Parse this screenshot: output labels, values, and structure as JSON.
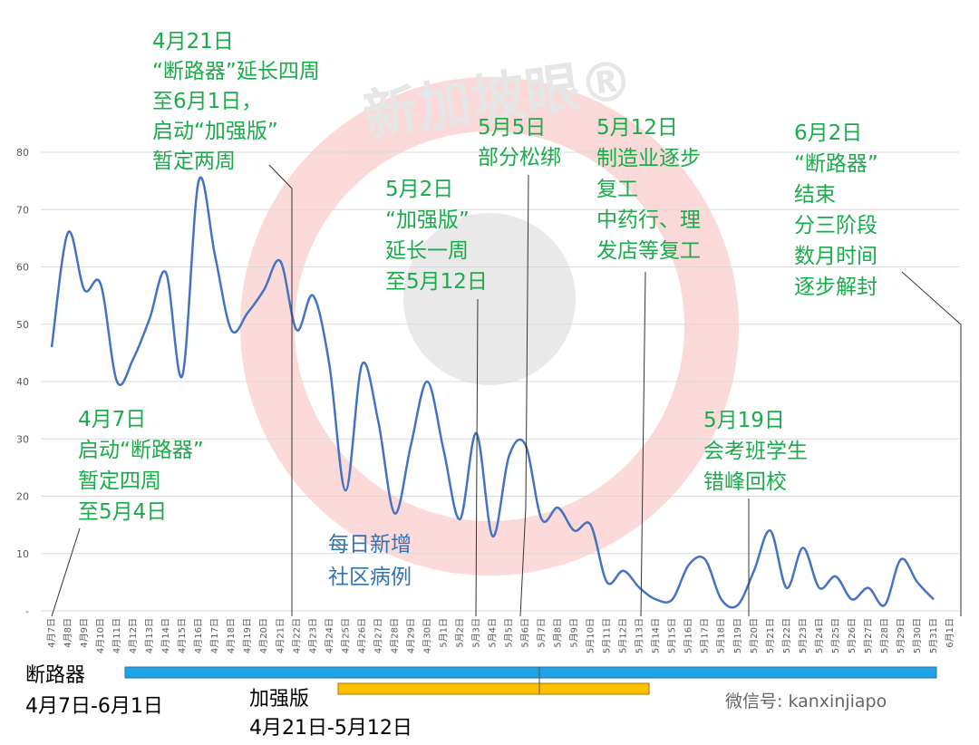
{
  "chart_data": {
    "type": "line",
    "categories": [
      "4月7日",
      "4月8日",
      "4月9日",
      "4月10日",
      "4月11日",
      "4月12日",
      "4月13日",
      "4月14日",
      "4月15日",
      "4月16日",
      "4月17日",
      "4月18日",
      "4月19日",
      "4月20日",
      "4月21日",
      "4月22日",
      "4月23日",
      "4月24日",
      "4月25日",
      "4月26日",
      "4月27日",
      "4月28日",
      "4月29日",
      "4月30日",
      "5月1日",
      "5月2日",
      "5月3日",
      "5月4日",
      "5月5日",
      "5月6日",
      "5月7日",
      "5月8日",
      "5月9日",
      "5月10日",
      "5月11日",
      "5月12日",
      "5月13日",
      "5月14日",
      "5月15日",
      "5月16日",
      "5月17日",
      "5月18日",
      "5月19日",
      "5月20日",
      "5月21日",
      "5月22日",
      "5月23日",
      "5月24日",
      "5月25日",
      "5月26日",
      "5月27日",
      "5月28日",
      "5月29日",
      "5月30日",
      "5月31日",
      "6月1日"
    ],
    "series": [
      {
        "color": "#4472c4",
        "values": [
          46,
          66,
          56,
          57,
          40,
          44,
          51,
          59,
          41,
          75,
          62,
          49,
          52,
          56,
          61,
          49,
          55,
          43,
          21,
          43,
          33,
          17,
          29,
          40,
          28,
          16,
          31,
          13,
          27,
          29,
          16,
          18,
          14,
          15,
          5,
          7,
          4,
          2,
          2,
          8,
          9,
          2,
          1,
          7,
          14,
          4,
          11,
          4,
          6,
          2,
          4,
          1,
          9,
          5,
          2,
          null
        ]
      }
    ],
    "ylim": [
      0,
      80
    ],
    "yticks": [
      {
        "value": 0,
        "label": "-"
      },
      10,
      20,
      30,
      40,
      50,
      60,
      70,
      80
    ],
    "grid": true,
    "series_label": [
      "每日新增",
      "社区病例"
    ],
    "annotations": [
      {
        "lines": [
          "4月21日",
          "“断路器”延长四周",
          "至6月1日，",
          "启动“加强版”",
          "暂定两周"
        ]
      },
      {
        "lines": [
          "5月5日",
          "部分松绑"
        ]
      },
      {
        "lines": [
          "5月12日",
          "制造业逐步",
          "复工",
          "中药行、理",
          "发店等复工"
        ]
      },
      {
        "lines": [
          "6月2日",
          "“断路器”",
          "结束",
          "分三阶段",
          "数月时间",
          "逐步解封"
        ]
      },
      {
        "lines": [
          "5月2日",
          "“加强版”",
          "延长一周",
          "至5月12日"
        ]
      },
      {
        "lines": [
          "4月7日",
          "启动“断路器”",
          "暂定四周",
          "至5月4日"
        ]
      },
      {
        "lines": [
          "5月19日",
          "会考班学生",
          "错峰回校"
        ]
      }
    ],
    "periods": [
      {
        "name": "断路器",
        "range": "4月7日-6月1日"
      },
      {
        "name": "加强版",
        "range": "4月21日-5月12日"
      }
    ],
    "watermark": "新加坡眼®",
    "wechat": "微信号: kanxinjiapo"
  }
}
